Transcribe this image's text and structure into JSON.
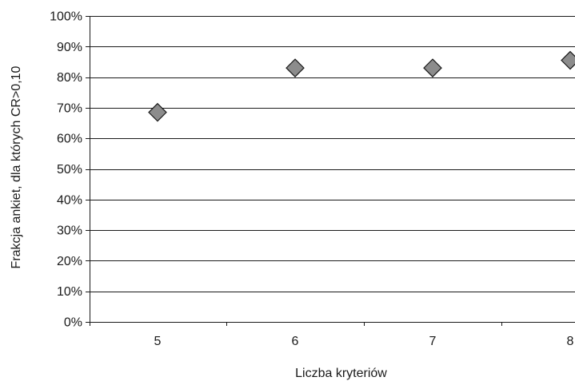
{
  "chart_data": {
    "type": "scatter",
    "title": "",
    "xlabel": "Liczba kryteriów",
    "ylabel": "Frakcja ankiet, dla których CR>0,10",
    "x_categories": [
      "5",
      "6",
      "7",
      "8"
    ],
    "ylim": [
      0,
      1
    ],
    "y_tick_labels": [
      "0%",
      "10%",
      "20%",
      "30%",
      "40%",
      "50%",
      "60%",
      "70%",
      "80%",
      "90%",
      "100%"
    ],
    "y_tick_values": [
      0,
      0.1,
      0.2,
      0.3,
      0.4,
      0.5,
      0.6,
      0.7,
      0.8,
      0.9,
      1.0
    ],
    "grid": true,
    "marker": "diamond",
    "marker_color": "#8c8c8c",
    "series": [
      {
        "points": [
          {
            "x": "5",
            "y": 0.685
          },
          {
            "x": "6",
            "y": 0.83
          },
          {
            "x": "7",
            "y": 0.83
          },
          {
            "x": "8",
            "y": 0.855
          }
        ]
      }
    ]
  }
}
